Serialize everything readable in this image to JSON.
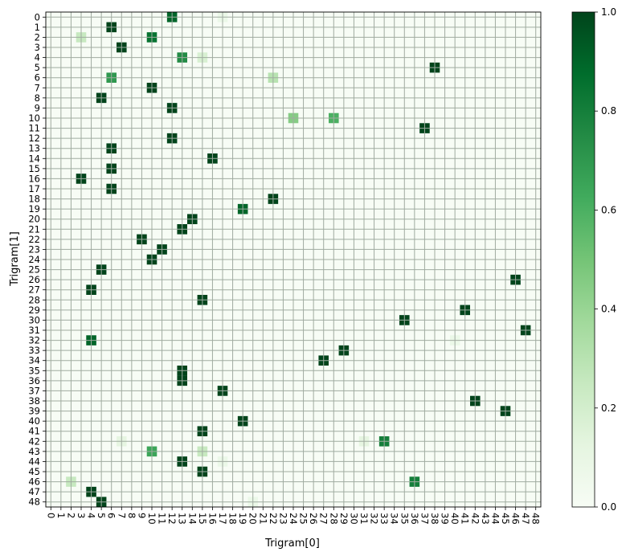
{
  "chart_data": {
    "type": "heatmap",
    "title": "",
    "xlabel": "Trigram[0]",
    "ylabel": "Trigram[1]",
    "x_categories": [
      "0",
      "1",
      "2",
      "3",
      "4",
      "5",
      "6",
      "7",
      "8",
      "9",
      "10",
      "11",
      "12",
      "13",
      "14",
      "15",
      "16",
      "17",
      "18",
      "19",
      "20",
      "21",
      "22",
      "23",
      "24",
      "25",
      "26",
      "27",
      "28",
      "29",
      "30",
      "31",
      "32",
      "33",
      "34",
      "35",
      "36",
      "37",
      "38",
      "39",
      "40",
      "41",
      "42",
      "43",
      "44",
      "45",
      "46",
      "47",
      "48"
    ],
    "y_categories": [
      "0",
      "1",
      "2",
      "3",
      "4",
      "5",
      "6",
      "7",
      "8",
      "9",
      "10",
      "11",
      "12",
      "13",
      "14",
      "15",
      "16",
      "17",
      "18",
      "19",
      "20",
      "21",
      "22",
      "23",
      "24",
      "25",
      "26",
      "27",
      "28",
      "29",
      "30",
      "31",
      "32",
      "33",
      "34",
      "35",
      "36",
      "37",
      "38",
      "39",
      "40",
      "41",
      "42",
      "43",
      "44",
      "45",
      "46",
      "47",
      "48"
    ],
    "x_tick_labels": [
      "0",
      "1",
      "2",
      "3",
      "4",
      "5",
      "6",
      "7",
      "8",
      "9",
      "10",
      "11",
      "12",
      "13",
      "14",
      "15",
      "16",
      "17",
      "18",
      "19",
      "20",
      "21",
      "22",
      "23",
      "24",
      "25",
      "26",
      "27",
      "28",
      "29",
      "30",
      "31",
      "32",
      "33",
      "34",
      "35",
      "36",
      "37",
      "38",
      "39",
      "40",
      "41",
      "42",
      "43",
      "44",
      "45",
      "46",
      "47",
      "48"
    ],
    "y_tick_labels": [
      "0",
      "1",
      "2",
      "3",
      "4",
      "5",
      "6",
      "7",
      "8",
      "9",
      "10",
      "11",
      "12",
      "13",
      "14",
      "15",
      "16",
      "17",
      "18",
      "19",
      "20",
      "21",
      "22",
      "23",
      "24",
      "25",
      "26",
      "27",
      "28",
      "29",
      "30",
      "31",
      "32",
      "33",
      "34",
      "35",
      "36",
      "37",
      "38",
      "39",
      "40",
      "41",
      "42",
      "43",
      "44",
      "45",
      "46",
      "47",
      "48"
    ],
    "x_tick_labels_rotated": true,
    "grid": true,
    "colormap": "Greens",
    "vmin": 0,
    "vmax": 1,
    "colorbar": {
      "ticks": [
        "0.0",
        "0.2",
        "0.4",
        "0.6",
        "0.8",
        "1.0"
      ]
    },
    "cells": [
      [
        12,
        0,
        0.9
      ],
      [
        17,
        0,
        0.08
      ],
      [
        6,
        1,
        1.0
      ],
      [
        3,
        2,
        0.25
      ],
      [
        10,
        2,
        0.85
      ],
      [
        7,
        3,
        1.0
      ],
      [
        13,
        4,
        0.75
      ],
      [
        15,
        4,
        0.18
      ],
      [
        38,
        5,
        1.0
      ],
      [
        6,
        6,
        0.7
      ],
      [
        22,
        6,
        0.3
      ],
      [
        10,
        7,
        1.0
      ],
      [
        5,
        8,
        1.0
      ],
      [
        12,
        9,
        1.0
      ],
      [
        24,
        10,
        0.45
      ],
      [
        28,
        10,
        0.6
      ],
      [
        37,
        11,
        1.0
      ],
      [
        12,
        12,
        1.0
      ],
      [
        6,
        13,
        1.0
      ],
      [
        16,
        14,
        1.0
      ],
      [
        6,
        15,
        1.0
      ],
      [
        3,
        16,
        1.0
      ],
      [
        6,
        17,
        1.0
      ],
      [
        22,
        18,
        1.0
      ],
      [
        19,
        19,
        0.9
      ],
      [
        14,
        20,
        1.0
      ],
      [
        13,
        21,
        1.0
      ],
      [
        9,
        22,
        1.0
      ],
      [
        11,
        23,
        1.0
      ],
      [
        10,
        24,
        1.0
      ],
      [
        5,
        25,
        1.0
      ],
      [
        46,
        26,
        1.0
      ],
      [
        4,
        27,
        1.0
      ],
      [
        15,
        28,
        1.0
      ],
      [
        41,
        29,
        1.0
      ],
      [
        35,
        30,
        1.0
      ],
      [
        47,
        31,
        1.0
      ],
      [
        4,
        32,
        0.9
      ],
      [
        40,
        32,
        0.08
      ],
      [
        29,
        33,
        1.0
      ],
      [
        27,
        34,
        1.0
      ],
      [
        13,
        35,
        1.0
      ],
      [
        13,
        36,
        1.0
      ],
      [
        17,
        37,
        1.0
      ],
      [
        42,
        38,
        1.0
      ],
      [
        45,
        39,
        1.0
      ],
      [
        19,
        40,
        1.0
      ],
      [
        15,
        41,
        1.0
      ],
      [
        7,
        42,
        0.12
      ],
      [
        31,
        42,
        0.12
      ],
      [
        33,
        42,
        0.8
      ],
      [
        10,
        43,
        0.65
      ],
      [
        15,
        43,
        0.25
      ],
      [
        13,
        44,
        1.0
      ],
      [
        17,
        44,
        0.08
      ],
      [
        15,
        45,
        1.0
      ],
      [
        2,
        46,
        0.25
      ],
      [
        36,
        46,
        0.8
      ],
      [
        4,
        47,
        1.0
      ],
      [
        5,
        48,
        1.0
      ],
      [
        20,
        48,
        0.08
      ]
    ]
  }
}
